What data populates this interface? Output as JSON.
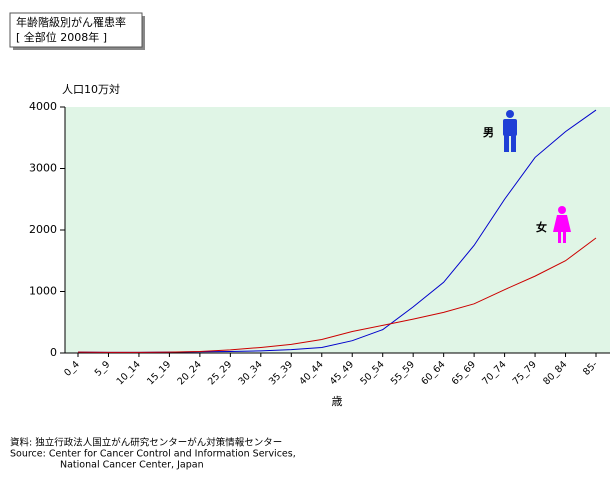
{
  "chart_data": {
    "type": "line",
    "title": "年齢階級別がん罹患率",
    "subtitle": "[ 全部位 2008年 ]",
    "y_label": "人口10万対",
    "x_label": "歳",
    "categories": [
      "0_4",
      "5_9",
      "10_14",
      "15_19",
      "20_24",
      "25_29",
      "30_34",
      "35_39",
      "40_44",
      "45_49",
      "50_54",
      "55_59",
      "60_64",
      "65_69",
      "70_74",
      "75_79",
      "80_84",
      "85-"
    ],
    "series": [
      {
        "name": "男",
        "color": "#0000cc",
        "icon_color": "#1f3fd6",
        "values": [
          15,
          10,
          10,
          15,
          20,
          25,
          35,
          55,
          90,
          200,
          380,
          750,
          1150,
          1750,
          2500,
          3180,
          3600,
          3950
        ]
      },
      {
        "name": "女",
        "color": "#cc0000",
        "icon_color": "#ff00ff",
        "values": [
          15,
          10,
          10,
          15,
          25,
          50,
          90,
          140,
          220,
          350,
          450,
          550,
          660,
          800,
          1030,
          1250,
          1500,
          1870
        ]
      }
    ],
    "ylim": [
      0,
      4000
    ],
    "yticks": [
      0,
      1000,
      2000,
      3000,
      4000
    ],
    "source": [
      "資料: 独立行政法人国立がん研究センターがん対策情報センター",
      "Source:  Center for Cancer Control and Information Services,",
      "National Cancer Center, Japan"
    ]
  }
}
